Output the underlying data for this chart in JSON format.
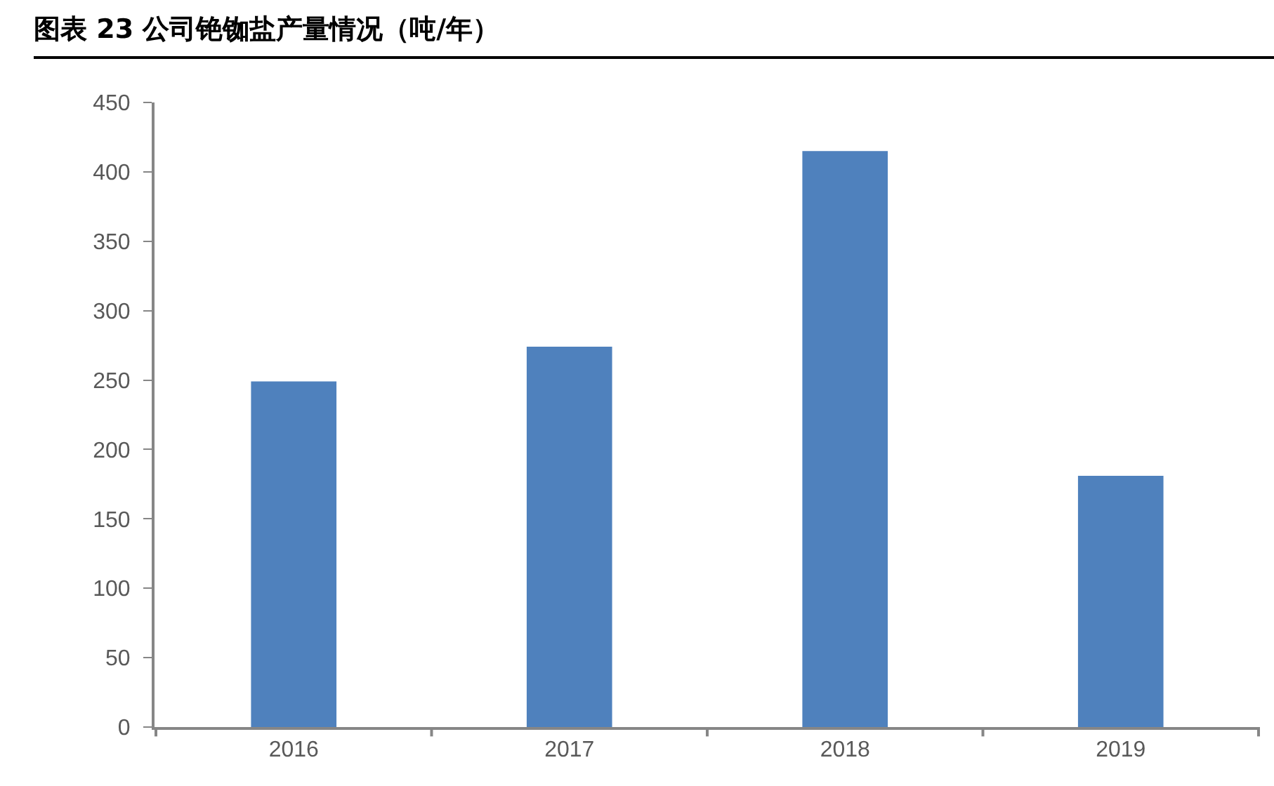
{
  "chart_data": {
    "type": "bar",
    "title": "图表 23 公司铯铷盐产量情况（吨/年）",
    "categories": [
      "2016",
      "2017",
      "2018",
      "2019"
    ],
    "values": [
      249,
      274,
      415,
      181
    ],
    "color": "#4f81bd",
    "ylim": [
      0,
      450
    ],
    "yticks": [
      0,
      50,
      100,
      150,
      200,
      250,
      300,
      350,
      400,
      450
    ],
    "grid": false
  }
}
